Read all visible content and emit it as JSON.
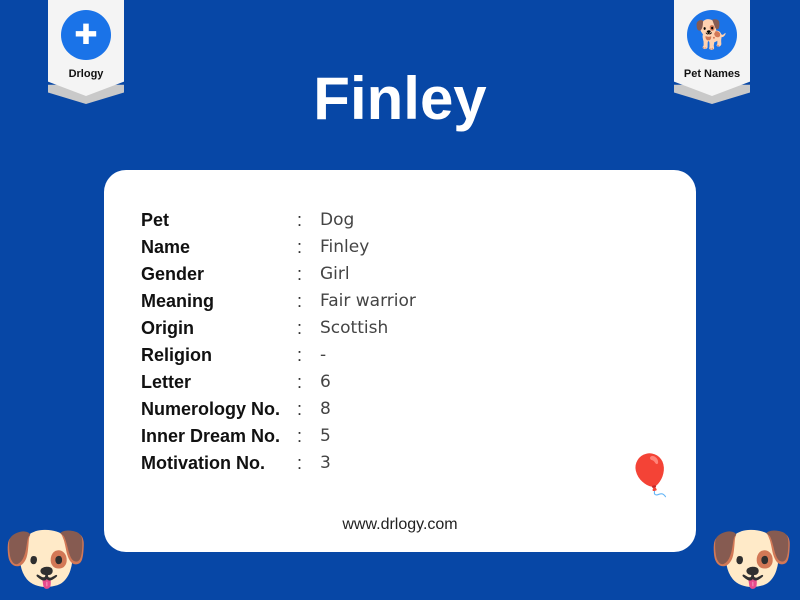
{
  "logo_left": {
    "label": "Drlogy",
    "icon": "medical-cross-stethoscope-icon"
  },
  "logo_right": {
    "label": "Pet Names",
    "icon": "dog-cat-icon"
  },
  "title": "Finley",
  "details": [
    {
      "key": "Pet",
      "value": "Dog"
    },
    {
      "key": "Name",
      "value": "Finley"
    },
    {
      "key": "Gender",
      "value": "Girl"
    },
    {
      "key": "Meaning",
      "value": "Fair warrior"
    },
    {
      "key": "Origin",
      "value": "Scottish"
    },
    {
      "key": "Religion",
      "value": "-"
    },
    {
      "key": "Letter",
      "value": "6"
    },
    {
      "key": "Numerology No.",
      "value": "8"
    },
    {
      "key": "Inner Dream No.",
      "value": "5"
    },
    {
      "key": "Motivation No.",
      "value": "3"
    }
  ],
  "separator": ":",
  "website": "www.drlogy.com",
  "colors": {
    "background": "#0747a6",
    "accent": "#1a73e8",
    "card": "#ffffff"
  }
}
